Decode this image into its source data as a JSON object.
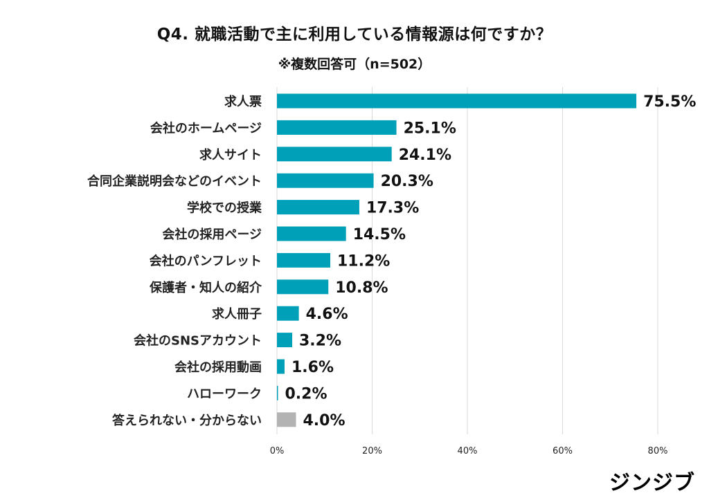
{
  "chart_data": {
    "type": "bar",
    "orientation": "horizontal",
    "title": "Q4.  就職活動で主に利用している情報源は何ですか？",
    "subtitle": "※複数回答可（n=502）",
    "categories": [
      "求人票",
      "会社のホームページ",
      "求人サイト",
      "合同企業説明会などのイベント",
      "学校での授業",
      "会社の採用ページ",
      "会社のパンフレット",
      "保護者・知人の紹介",
      "求人冊子",
      "会社のSNSアカウント",
      "会社の採用動画",
      "ハローワーク",
      "答えられない・分からない"
    ],
    "values": [
      75.5,
      25.1,
      24.1,
      20.3,
      17.3,
      14.5,
      11.2,
      10.8,
      4.6,
      3.2,
      1.6,
      0.2,
      4.0
    ],
    "data_labels": [
      "75.5%",
      "25.1%",
      "24.1%",
      "20.3%",
      "17.3%",
      "14.5%",
      "11.2%",
      "10.8%",
      "4.6%",
      "3.2%",
      "1.6%",
      "0.2%",
      "4.0%"
    ],
    "bar_colors": [
      "#00a0b8",
      "#00a0b8",
      "#00a0b8",
      "#00a0b8",
      "#00a0b8",
      "#00a0b8",
      "#00a0b8",
      "#00a0b8",
      "#00a0b8",
      "#00a0b8",
      "#00a0b8",
      "#00a0b8",
      "#b3b3b3"
    ],
    "xlim": [
      0,
      80
    ],
    "xticks": [
      0,
      20,
      40,
      60,
      80
    ],
    "xtick_labels": [
      "0%",
      "20%",
      "40%",
      "60%",
      "80%"
    ],
    "grid": "vertical",
    "legend": "none"
  },
  "brand": {
    "logo_text": "ジンジブ"
  }
}
